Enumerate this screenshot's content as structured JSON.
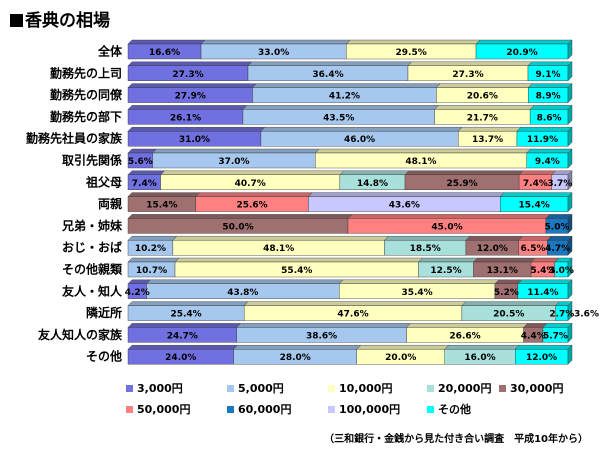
{
  "page": {
    "title": "香典の相場",
    "source": "（三和銀行・金銭から見た付き合い調査　平成10年から）"
  },
  "chart_data": {
    "type": "bar",
    "orientation": "horizontal",
    "stacked": true,
    "percent_stacked": true,
    "title": "香典の相場",
    "categories": [
      "全体",
      "勤務先の上司",
      "勤務先の同僚",
      "勤務先の部下",
      "勤務先社員の家族",
      "取引先関係",
      "祖父母",
      "両親",
      "兄弟・姉妹",
      "おじ・おば",
      "その他親類",
      "友人・知人",
      "隣近所",
      "友人知人の家族",
      "その他"
    ],
    "legend_position": "bottom",
    "series": [
      {
        "name": "3,000円",
        "color": "#7070e0",
        "values": [
          16.6,
          27.3,
          27.9,
          26.1,
          31.0,
          5.6,
          7.4,
          0,
          0,
          0,
          0,
          4.2,
          0,
          24.7,
          24.0
        ]
      },
      {
        "name": "5,000円",
        "color": "#a6c8ee",
        "values": [
          33.0,
          36.4,
          41.2,
          43.5,
          46.0,
          37.0,
          0,
          0,
          0,
          10.2,
          10.7,
          43.8,
          25.4,
          38.6,
          28.0
        ]
      },
      {
        "name": "10,000円",
        "color": "#ffffc0",
        "values": [
          29.5,
          27.3,
          20.6,
          21.7,
          13.7,
          48.1,
          40.7,
          0,
          0,
          48.1,
          55.4,
          35.4,
          47.6,
          26.6,
          20.0
        ]
      },
      {
        "name": "20,000円",
        "color": "#a8e0dc",
        "values": [
          0,
          0,
          0,
          0,
          0,
          0,
          14.8,
          0,
          0,
          18.5,
          12.5,
          0,
          20.5,
          0,
          16.0
        ]
      },
      {
        "name": "30,000円",
        "color": "#a07070",
        "values": [
          0,
          0,
          0,
          0,
          0,
          0,
          25.9,
          15.4,
          50.0,
          12.0,
          13.1,
          5.2,
          0,
          4.4,
          0
        ]
      },
      {
        "name": "50,000円",
        "color": "#ff8080",
        "values": [
          0,
          0,
          0,
          0,
          0,
          0,
          7.4,
          25.6,
          45.0,
          6.5,
          5.4,
          0,
          0,
          0,
          0
        ]
      },
      {
        "name": "60,000円",
        "color": "#1a78c0",
        "values": [
          0,
          0,
          0,
          0,
          0,
          0,
          0,
          0,
          5.0,
          4.7,
          0,
          0,
          0,
          0,
          0
        ]
      },
      {
        "name": "100,000円",
        "color": "#c8c8ff",
        "values": [
          0,
          0,
          0,
          0,
          0,
          0,
          3.7,
          43.6,
          0,
          0,
          0,
          0,
          0,
          0,
          0
        ]
      },
      {
        "name": "その他",
        "color": "#00ffff",
        "values": [
          20.9,
          9.1,
          8.9,
          8.6,
          11.9,
          9.4,
          0,
          15.4,
          0,
          0,
          3.0,
          11.4,
          2.7,
          5.7,
          12.0
        ]
      }
    ],
    "data_labels": [
      [
        "16.6%",
        "33.0%",
        "29.5%",
        "",
        "",
        "",
        "",
        "",
        "20.9%"
      ],
      [
        "27.3%",
        "36.4%",
        "27.3%",
        "",
        "",
        "",
        "",
        "",
        "9.1%"
      ],
      [
        "27.9%",
        "41.2%",
        "20.6%",
        "",
        "",
        "",
        "",
        "",
        "8.9%"
      ],
      [
        "26.1%",
        "43.5%",
        "21.7%",
        "",
        "",
        "",
        "",
        "",
        "8.6%"
      ],
      [
        "31.0%",
        "46.0%",
        "13.7%",
        "",
        "",
        "",
        "",
        "",
        "11.9%"
      ],
      [
        "5.6%",
        "37.0%",
        "48.1%",
        "",
        "",
        "",
        "",
        "",
        "9.4%"
      ],
      [
        "7.4%",
        "",
        "40.7%",
        "14.8%",
        "25.9%",
        "7.4%",
        "",
        "3.7%",
        ""
      ],
      [
        "",
        "",
        "",
        "",
        "15.4%",
        "25.6%",
        "",
        "43.6%",
        "15.4%"
      ],
      [
        "",
        "",
        "",
        "",
        "50.0%",
        "45.0%",
        "5.0%",
        "",
        ""
      ],
      [
        "",
        "10.2%",
        "48.1%",
        "18.5%",
        "12.0%",
        "6.5%",
        "4.7%",
        "",
        ""
      ],
      [
        "",
        "10.7%",
        "55.4%",
        "12.5%",
        "13.1%",
        "5.4%",
        "",
        "",
        "3.0%"
      ],
      [
        "4.2%",
        "43.8%",
        "35.4%",
        "",
        "5.2%",
        "",
        "",
        "",
        "11.4%"
      ],
      [
        "",
        "25.4%",
        "47.6%",
        "20.5%",
        "",
        "",
        "",
        "",
        "2.7%"
      ],
      [
        "24.7%",
        "38.6%",
        "26.6%",
        "",
        "4.4%",
        "",
        "",
        "",
        "5.7%"
      ],
      [
        "24.0%",
        "28.0%",
        "20.0%",
        "16.0%",
        "",
        "",
        "",
        "",
        "12.0%"
      ]
    ],
    "outside_labels": [
      "",
      "",
      "",
      "",
      "",
      "",
      "",
      "",
      "",
      "",
      "",
      "",
      "3.6%",
      "",
      ""
    ],
    "xlim": [
      0,
      100
    ]
  }
}
